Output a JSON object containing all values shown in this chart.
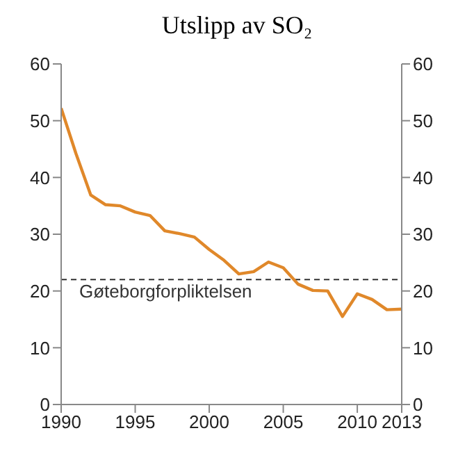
{
  "chart_data": {
    "type": "line",
    "title": "Utslipp av SO₂",
    "x": [
      1990,
      1991,
      1992,
      1993,
      1994,
      1995,
      1996,
      1997,
      1998,
      1999,
      2000,
      2001,
      2002,
      2003,
      2004,
      2005,
      2006,
      2007,
      2008,
      2009,
      2010,
      2011,
      2012,
      2013
    ],
    "series": [
      {
        "color": "#e0882a",
        "values": [
          52.2,
          44.2,
          36.9,
          35.2,
          35,
          33.9,
          33.3,
          30.6,
          30.1,
          29.5,
          27.3,
          25.4,
          23,
          23.4,
          25.1,
          24.1,
          21.2,
          20.1,
          20,
          15.5,
          19.5,
          18.5,
          16.7,
          16.8
        ]
      }
    ],
    "xlim": [
      1990,
      2013
    ],
    "xticks": [
      1990,
      1995,
      2000,
      2005,
      2010,
      2013
    ],
    "ylim": [
      0,
      60
    ],
    "yticks": [
      0,
      10,
      20,
      30,
      40,
      50,
      60
    ],
    "y2lim": [
      0,
      60
    ],
    "y2ticks": [
      0,
      10,
      20,
      30,
      40,
      50,
      60
    ],
    "ref_lines": [
      {
        "axis": "y",
        "value": 22,
        "label": "Gøteborgforpliktelsen",
        "color": "#333333",
        "line_style": "dashed"
      }
    ],
    "grid": false,
    "legend": false,
    "marker": "none",
    "line_style": "solid"
  }
}
